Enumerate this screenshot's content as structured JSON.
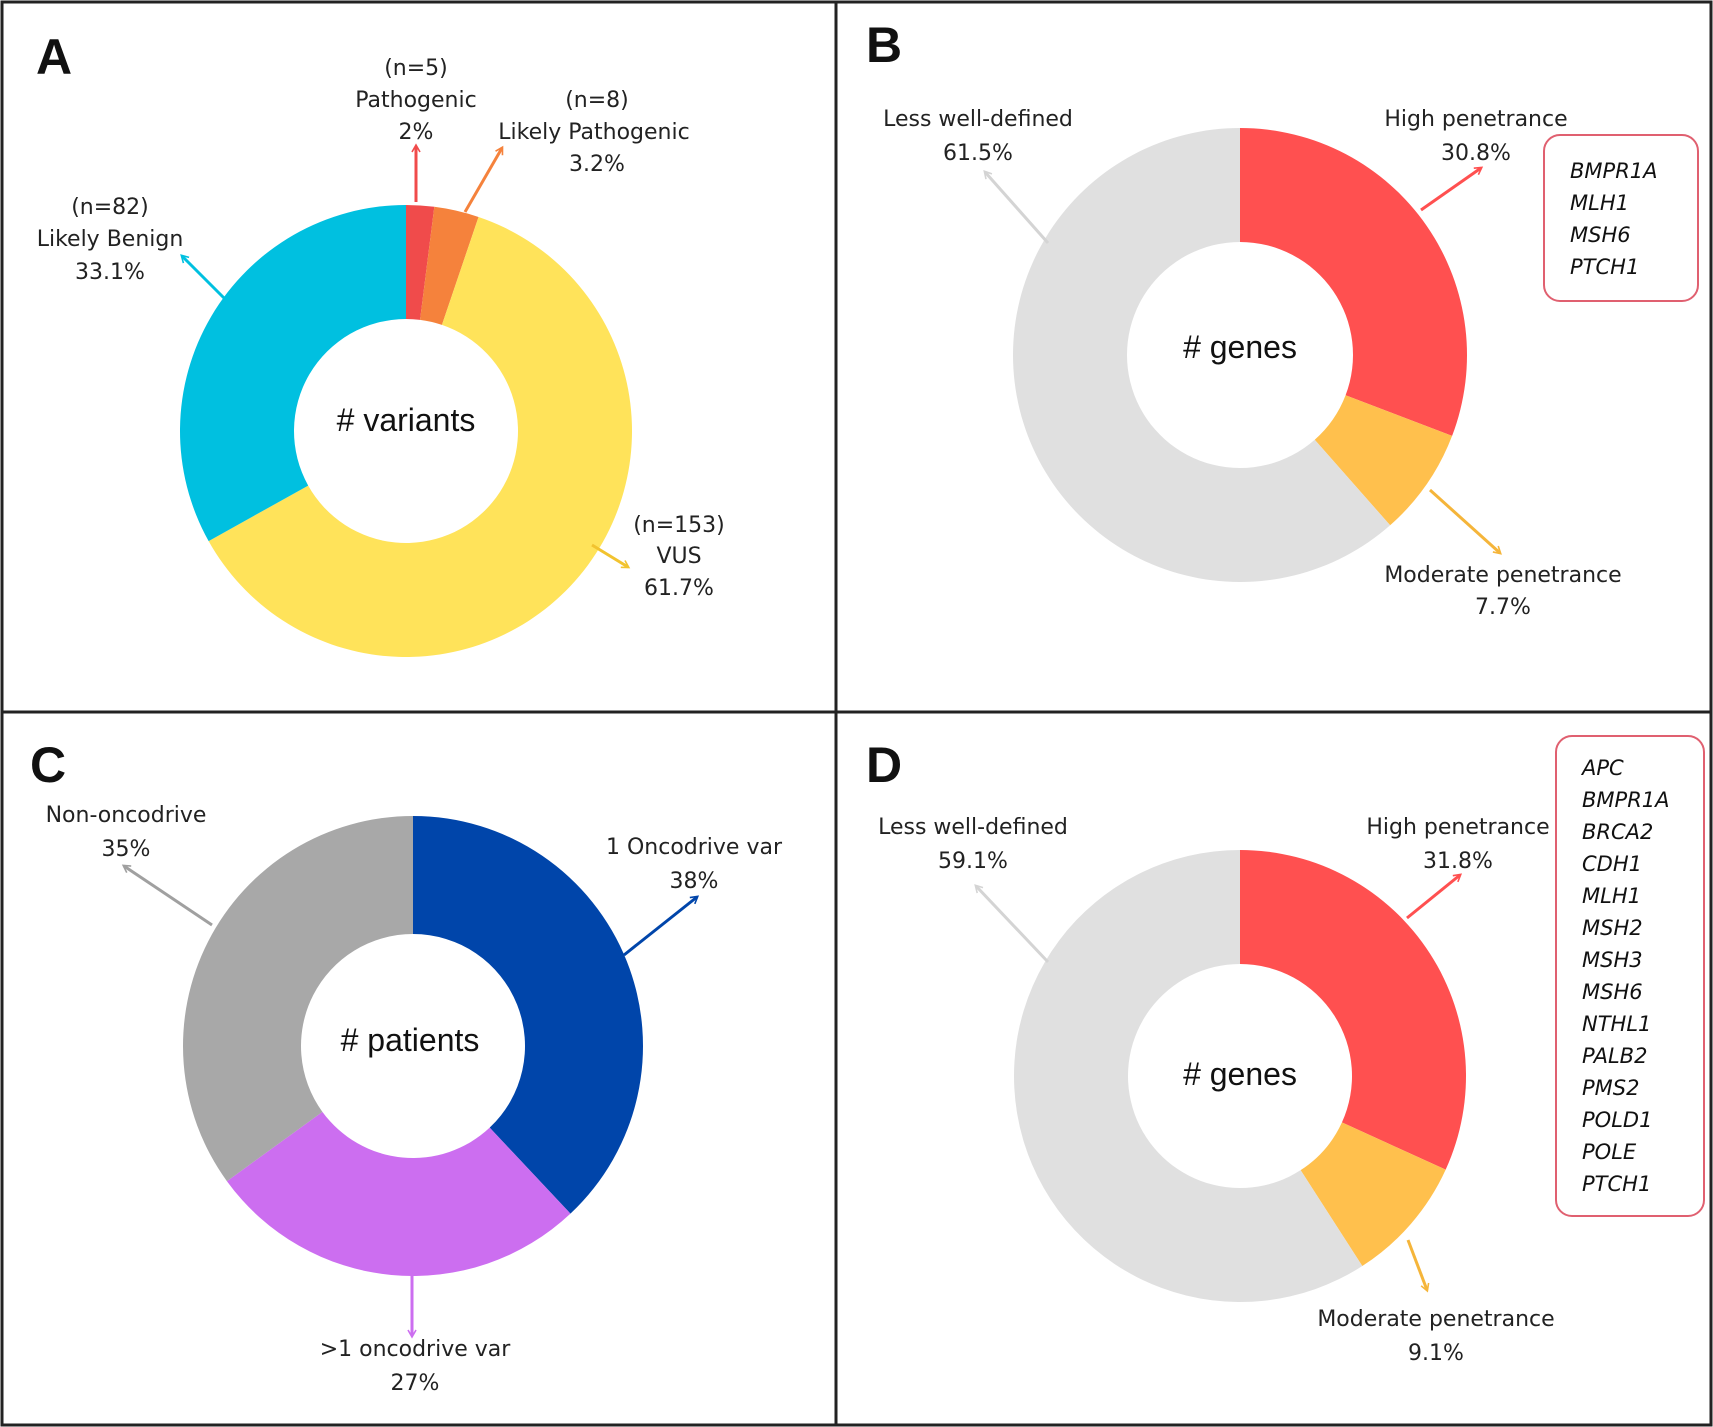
{
  "chart_data": [
    {
      "type": "pie",
      "variant": "donut",
      "panel": "A",
      "center_label": "# variants",
      "slices": [
        {
          "label": "Pathogenic",
          "n": "(n=5)",
          "percent": 2,
          "text": "2%",
          "color": "#f04b4b"
        },
        {
          "label": "Likely Pathogenic",
          "n": "(n=8)",
          "percent": 3.2,
          "text": "3.2%",
          "color": "#f5823c"
        },
        {
          "label": "VUS",
          "n": "(n=153)",
          "percent": 61.7,
          "text": "61.7%",
          "color": "#ffe35a"
        },
        {
          "label": "Likely Benign",
          "n": "(n=82)",
          "percent": 33.1,
          "text": "33.1%",
          "color": "#00c0e0"
        }
      ]
    },
    {
      "type": "pie",
      "variant": "donut",
      "panel": "B",
      "center_label": "# genes",
      "slices": [
        {
          "label": "High penetrance",
          "percent": 30.8,
          "text": "30.8%",
          "color": "#ff5050"
        },
        {
          "label": "Moderate penetrance",
          "percent": 7.7,
          "text": "7.7%",
          "color": "#ffc04d"
        },
        {
          "label": "Less well-defined",
          "percent": 61.5,
          "text": "61.5%",
          "color": "#e0e0e0"
        }
      ],
      "gene_box": [
        "BMPR1A",
        "MLH1",
        "MSH6",
        "PTCH1"
      ]
    },
    {
      "type": "pie",
      "variant": "donut",
      "panel": "C",
      "center_label": "# patients",
      "slices": [
        {
          "label": "1 Oncodrive var",
          "percent": 38,
          "text": "38%",
          "color": "#0045aa"
        },
        {
          "label": ">1 oncodrive var",
          "percent": 27,
          "text": "27%",
          "color": "#cc6ef0"
        },
        {
          "label": "Non-oncodrive",
          "percent": 35,
          "text": "35%",
          "color": "#a8a8a8"
        }
      ]
    },
    {
      "type": "pie",
      "variant": "donut",
      "panel": "D",
      "center_label": "# genes",
      "slices": [
        {
          "label": "High penetrance",
          "percent": 31.8,
          "text": "31.8%",
          "color": "#ff5050"
        },
        {
          "label": "Moderate penetrance",
          "percent": 9.1,
          "text": "9.1%",
          "color": "#ffc04d"
        },
        {
          "label": "Less well-defined",
          "percent": 59.1,
          "text": "59.1%",
          "color": "#e0e0e0"
        }
      ],
      "gene_box": [
        "APC",
        "BMPR1A",
        "BRCA2",
        "CDH1",
        "MLH1",
        "MSH2",
        "MSH3",
        "MSH6",
        "NTHL1",
        "PALB2",
        "PMS2",
        "POLD1",
        "POLE",
        "PTCH1"
      ]
    }
  ]
}
